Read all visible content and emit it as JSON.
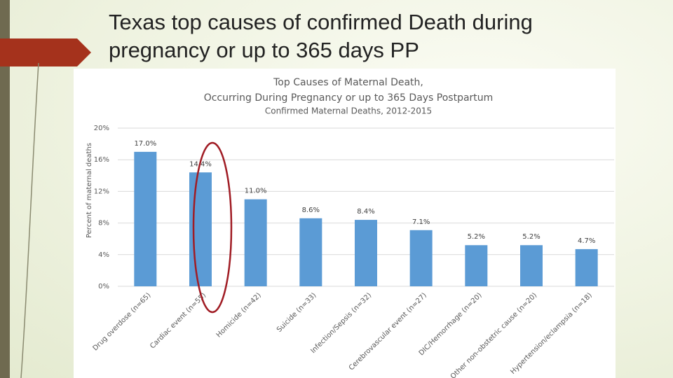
{
  "slide": {
    "title": "Texas top causes of confirmed Death during pregnancy or up to 365 days PP"
  },
  "chart_data": {
    "type": "bar",
    "title": [
      "Top Causes of Maternal Death,",
      "Occurring During Pregnancy or up to 365 Days Postpartum"
    ],
    "subtitle": "Confirmed Maternal Deaths, 2012-2015",
    "y_label": "Percent of maternal deaths",
    "categories": [
      "Drug overdose (n=65)",
      "Cardiac event (n=55)",
      "Homicide (n=42)",
      "Suicide (n=33)",
      "Infection/Sepsis (n=32)",
      "Cerebrovascular event (n=27)",
      "DIC/Hemorrhage (n=20)",
      "Other non-obstetric cause (n=20)",
      "Hypertension/eclampsia (n=18)"
    ],
    "values": [
      17.0,
      14.4,
      11.0,
      8.6,
      8.4,
      7.1,
      5.2,
      5.2,
      4.7
    ],
    "value_labels": [
      "17.0%",
      "14.4%",
      "11.0%",
      "8.6%",
      "8.4%",
      "7.1%",
      "5.2%",
      "5.2%",
      "4.7%"
    ],
    "color": "#5b9bd5",
    "ylim": [
      0,
      20
    ],
    "yticks": [
      {
        "value": 0,
        "label": "0%"
      },
      {
        "value": 4,
        "label": "4%"
      },
      {
        "value": 8,
        "label": "8%"
      },
      {
        "value": 12,
        "label": "12%"
      },
      {
        "value": 16,
        "label": "16%"
      },
      {
        "value": 20,
        "label": "20%"
      }
    ],
    "grid": true
  }
}
